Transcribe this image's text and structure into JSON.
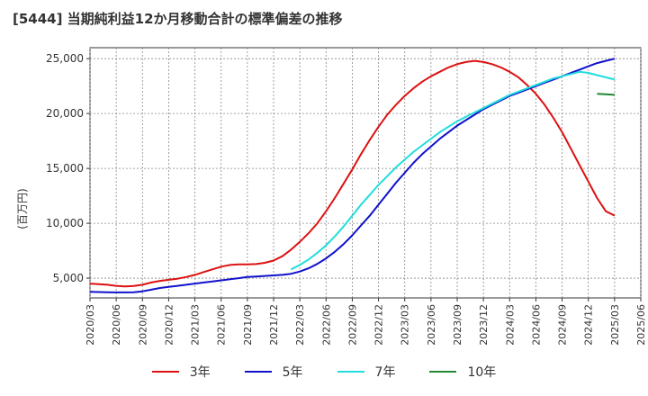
{
  "title": "[5444]  当期純利益12か月移動合計の標準偏差の推移",
  "y_unit_label": "(百万円)",
  "chart_data": {
    "type": "line",
    "title": "[5444]  当期純利益12か月移動合計の標準偏差の推移",
    "ylabel": "(百万円)",
    "xlabel": "",
    "ylim": [
      3200,
      26000
    ],
    "xlim": [
      "2020/03",
      "2025/06"
    ],
    "grid": true,
    "legend_position": "bottom",
    "x_ticks": [
      "2020/03",
      "2020/06",
      "2020/09",
      "2020/12",
      "2021/03",
      "2021/06",
      "2021/09",
      "2021/12",
      "2022/03",
      "2022/06",
      "2022/09",
      "2022/12",
      "2023/03",
      "2023/06",
      "2023/09",
      "2023/12",
      "2024/03",
      "2024/06",
      "2024/09",
      "2024/12",
      "2025/03",
      "2025/06"
    ],
    "y_ticks": [
      5000,
      10000,
      15000,
      20000,
      25000
    ],
    "y_tick_labels": [
      "5,000",
      "10,000",
      "15,000",
      "20,000",
      "25,000"
    ],
    "series": [
      {
        "name": "3年",
        "color": "#dd1111",
        "x": [
          "2020/03",
          "2020/04",
          "2020/05",
          "2020/06",
          "2020/07",
          "2020/08",
          "2020/09",
          "2020/10",
          "2020/11",
          "2020/12",
          "2021/01",
          "2021/02",
          "2021/03",
          "2021/04",
          "2021/05",
          "2021/06",
          "2021/07",
          "2021/08",
          "2021/09",
          "2021/10",
          "2021/11",
          "2021/12",
          "2022/01",
          "2022/02",
          "2022/03",
          "2022/04",
          "2022/05",
          "2022/06",
          "2022/07",
          "2022/08",
          "2022/09",
          "2022/10",
          "2022/11",
          "2022/12",
          "2023/01",
          "2023/02",
          "2023/03",
          "2023/04",
          "2023/05",
          "2023/06",
          "2023/07",
          "2023/08",
          "2023/09",
          "2023/10",
          "2023/11",
          "2023/12",
          "2024/01",
          "2024/02",
          "2024/03",
          "2024/04",
          "2024/05",
          "2024/06",
          "2024/07",
          "2024/08",
          "2024/09",
          "2024/10",
          "2024/11",
          "2024/12",
          "2025/01",
          "2025/02",
          "2025/03"
        ],
        "values": [
          4500,
          4450,
          4400,
          4300,
          4250,
          4280,
          4400,
          4600,
          4750,
          4850,
          4950,
          5100,
          5300,
          5550,
          5800,
          6050,
          6200,
          6250,
          6250,
          6280,
          6400,
          6600,
          7000,
          7600,
          8300,
          9100,
          10000,
          11100,
          12300,
          13600,
          14900,
          16300,
          17600,
          18800,
          19900,
          20800,
          21600,
          22300,
          22900,
          23400,
          23800,
          24200,
          24500,
          24700,
          24800,
          24700,
          24500,
          24200,
          23800,
          23300,
          22600,
          21800,
          20800,
          19600,
          18300,
          16800,
          15300,
          13800,
          12300,
          11100,
          10700
        ]
      },
      {
        "name": "5年",
        "color": "#1111cc",
        "x": [
          "2020/03",
          "2020/04",
          "2020/05",
          "2020/06",
          "2020/07",
          "2020/08",
          "2020/09",
          "2020/10",
          "2020/11",
          "2020/12",
          "2021/01",
          "2021/02",
          "2021/03",
          "2021/04",
          "2021/05",
          "2021/06",
          "2021/07",
          "2021/08",
          "2021/09",
          "2021/10",
          "2021/11",
          "2021/12",
          "2022/01",
          "2022/02",
          "2022/03",
          "2022/04",
          "2022/05",
          "2022/06",
          "2022/07",
          "2022/08",
          "2022/09",
          "2022/10",
          "2022/11",
          "2022/12",
          "2023/01",
          "2023/02",
          "2023/03",
          "2023/04",
          "2023/05",
          "2023/06",
          "2023/07",
          "2023/08",
          "2023/09",
          "2023/10",
          "2023/11",
          "2023/12",
          "2024/01",
          "2024/02",
          "2024/03",
          "2024/04",
          "2024/05",
          "2024/06",
          "2024/07",
          "2024/08",
          "2024/09",
          "2024/10",
          "2024/11",
          "2024/12",
          "2025/01",
          "2025/02",
          "2025/03"
        ],
        "values": [
          3750,
          3730,
          3720,
          3700,
          3700,
          3720,
          3800,
          3950,
          4100,
          4200,
          4300,
          4400,
          4500,
          4600,
          4700,
          4800,
          4900,
          5000,
          5100,
          5150,
          5200,
          5250,
          5300,
          5400,
          5600,
          5900,
          6300,
          6800,
          7400,
          8100,
          8900,
          9800,
          10700,
          11700,
          12700,
          13700,
          14600,
          15500,
          16300,
          17000,
          17700,
          18300,
          18900,
          19400,
          19900,
          20400,
          20800,
          21200,
          21600,
          21900,
          22200,
          22500,
          22800,
          23100,
          23400,
          23700,
          24000,
          24300,
          24600,
          24800,
          25000
        ]
      },
      {
        "name": "7年",
        "color": "#22dddd",
        "x": [
          "2022/02",
          "2022/03",
          "2022/04",
          "2022/05",
          "2022/06",
          "2022/07",
          "2022/08",
          "2022/09",
          "2022/10",
          "2022/11",
          "2022/12",
          "2023/01",
          "2023/02",
          "2023/03",
          "2023/04",
          "2023/05",
          "2023/06",
          "2023/07",
          "2023/08",
          "2023/09",
          "2023/10",
          "2023/11",
          "2023/12",
          "2024/01",
          "2024/02",
          "2024/03",
          "2024/04",
          "2024/05",
          "2024/06",
          "2024/07",
          "2024/08",
          "2024/09",
          "2024/10",
          "2024/11",
          "2024/12",
          "2025/01",
          "2025/02",
          "2025/03"
        ],
        "values": [
          5800,
          6200,
          6700,
          7300,
          8000,
          8800,
          9700,
          10700,
          11700,
          12600,
          13500,
          14300,
          15100,
          15800,
          16500,
          17100,
          17700,
          18300,
          18800,
          19300,
          19700,
          20100,
          20500,
          20900,
          21300,
          21700,
          22000,
          22300,
          22600,
          22900,
          23200,
          23400,
          23600,
          23800,
          23700,
          23500,
          23300,
          23100
        ]
      },
      {
        "name": "10年",
        "color": "#228833",
        "x": [
          "2025/01",
          "2025/02",
          "2025/03"
        ],
        "values": [
          21800,
          21750,
          21700
        ]
      }
    ]
  }
}
